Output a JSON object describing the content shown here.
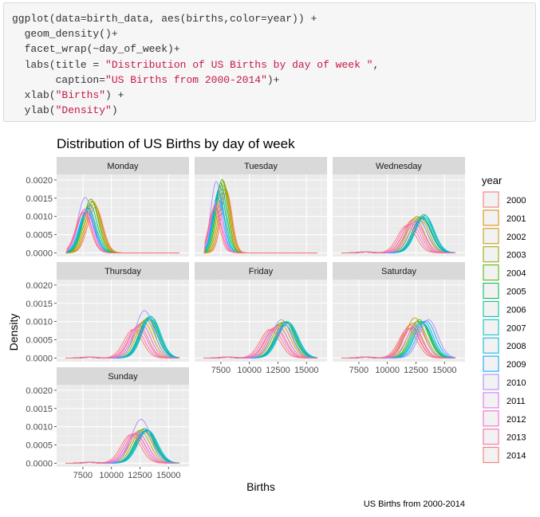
{
  "code": {
    "lines": [
      [
        {
          "t": "ggplot(data=birth_data, aes(births,color=year)) +"
        }
      ],
      [
        {
          "t": "  geom_density()+"
        }
      ],
      [
        {
          "t": "  facet_wrap(~day_of_week)+"
        }
      ],
      [
        {
          "t": "  labs(title = "
        },
        {
          "t": "\"Distribution of US Births by day of week \"",
          "s": "str"
        },
        {
          "t": ","
        }
      ],
      [
        {
          "t": "       caption="
        },
        {
          "t": "\"US Births from 2000-2014\"",
          "s": "str"
        },
        {
          "t": ")+"
        }
      ],
      [
        {
          "t": "  xlab("
        },
        {
          "t": "\"Births\"",
          "s": "str"
        },
        {
          "t": ") +"
        }
      ],
      [
        {
          "t": "  ylab("
        },
        {
          "t": "\"Density\"",
          "s": "str"
        },
        {
          "t": ")"
        }
      ]
    ]
  },
  "chart_data": {
    "type": "line",
    "subtype": "density-facets",
    "title": "Distribution of US Births by day of week",
    "xlabel": "Births",
    "ylabel": "Density",
    "caption": "US Births from 2000-2014",
    "xlim": [
      5200,
      16800
    ],
    "ylim": [
      -0.0001,
      0.00215
    ],
    "x_ticks": [
      7500,
      10000,
      12500,
      15000
    ],
    "x_tick_labels": [
      "7500",
      "10000",
      "12500",
      "15000"
    ],
    "y_ticks": [
      0,
      0.0005,
      0.001,
      0.0015,
      0.002
    ],
    "y_tick_labels": [
      "0.0000",
      "0.0005",
      "0.0010",
      "0.0015",
      "0.0020"
    ],
    "grid": true,
    "legend": {
      "title": "year",
      "position": "right"
    },
    "years": [
      "2000",
      "2001",
      "2002",
      "2003",
      "2004",
      "2005",
      "2006",
      "2007",
      "2008",
      "2009",
      "2010",
      "2011",
      "2012",
      "2013",
      "2014"
    ],
    "colors": [
      "#F8766D",
      "#E38900",
      "#C49A00",
      "#99A800",
      "#53B400",
      "#00BC56",
      "#00C094",
      "#00BFC4",
      "#00B6EB",
      "#06A4FF",
      "#A58AFF",
      "#DF70F8",
      "#FB61D7",
      "#FF66A8",
      "#F8766D"
    ],
    "panels": [
      {
        "name": "Monday",
        "peak_x": [
          8600,
          8500,
          8400,
          8300,
          8200,
          8100,
          8000,
          7900,
          7900,
          7800,
          7700,
          7700,
          7600,
          7600,
          7500
        ],
        "peak_y": [
          0.00125,
          0.00132,
          0.00138,
          0.0014,
          0.00145,
          0.0013,
          0.0012,
          0.00118,
          0.0011,
          0.00112,
          0.0015,
          0.0012,
          0.00115,
          0.0011,
          0.00108
        ],
        "spread": 650
      },
      {
        "name": "Tuesday",
        "peak_x": [
          8000,
          7900,
          7800,
          7700,
          7600,
          7500,
          7400,
          7300,
          7300,
          7200,
          7100,
          7100,
          7000,
          7000,
          6900
        ],
        "peak_y": [
          0.00165,
          0.00175,
          0.00185,
          0.00195,
          0.002,
          0.0019,
          0.0018,
          0.0017,
          0.0016,
          0.0015,
          0.00195,
          0.0014,
          0.0013,
          0.00125,
          0.0012
        ],
        "spread": 480
      },
      {
        "name": "Wednesday",
        "peak_x": [
          12200,
          12400,
          12600,
          12800,
          13000,
          13100,
          13200,
          13300,
          13200,
          13000,
          12700,
          12400,
          12100,
          11900,
          11700
        ],
        "peak_y": [
          0.0009,
          0.00095,
          0.001,
          0.00098,
          0.001,
          0.00095,
          0.00105,
          0.00102,
          0.00098,
          0.00095,
          0.0009,
          0.00085,
          0.0008,
          0.00078,
          0.00075
        ],
        "spread": 800
      },
      {
        "name": "Thursday",
        "peak_x": [
          12400,
          12600,
          12800,
          13000,
          13200,
          13300,
          13400,
          13500,
          13400,
          13200,
          12900,
          12600,
          12300,
          12100,
          11900
        ],
        "peak_y": [
          0.0009,
          0.00095,
          0.001,
          0.00105,
          0.0011,
          0.0011,
          0.00115,
          0.00112,
          0.00108,
          0.00105,
          0.0013,
          0.00095,
          0.00085,
          0.0008,
          0.00078
        ],
        "spread": 800
      },
      {
        "name": "Friday",
        "peak_x": [
          12300,
          12500,
          12700,
          12900,
          13100,
          13200,
          13300,
          13400,
          13300,
          13100,
          12800,
          12500,
          12200,
          12000,
          11800
        ],
        "peak_y": [
          0.00085,
          0.0009,
          0.00095,
          0.00098,
          0.001,
          0.00098,
          0.001,
          0.00098,
          0.00095,
          0.0009,
          0.00105,
          0.00088,
          0.00082,
          0.0008,
          0.00078
        ],
        "spread": 850
      },
      {
        "name": "Saturday",
        "peak_x": [
          12000,
          12200,
          12400,
          12600,
          12800,
          12900,
          13000,
          13100,
          13200,
          13400,
          13600,
          12500,
          12200,
          12000,
          11800
        ],
        "peak_y": [
          0.0009,
          0.00095,
          0.0011,
          0.001,
          0.00105,
          0.001,
          0.00098,
          0.00095,
          0.001,
          0.00102,
          0.00105,
          0.0009,
          0.00085,
          0.00082,
          0.0008
        ],
        "spread": 800
      },
      {
        "name": "Sunday",
        "peak_x": [
          12100,
          12300,
          12500,
          12700,
          12900,
          13000,
          13100,
          13200,
          13100,
          12900,
          12600,
          12300,
          12100,
          11900,
          11700
        ],
        "peak_y": [
          0.0008,
          0.00085,
          0.0009,
          0.00092,
          0.00095,
          0.0009,
          0.00088,
          0.0009,
          0.00092,
          0.00088,
          0.0012,
          0.00085,
          0.00082,
          0.0008,
          0.00078
        ],
        "spread": 850
      }
    ]
  }
}
